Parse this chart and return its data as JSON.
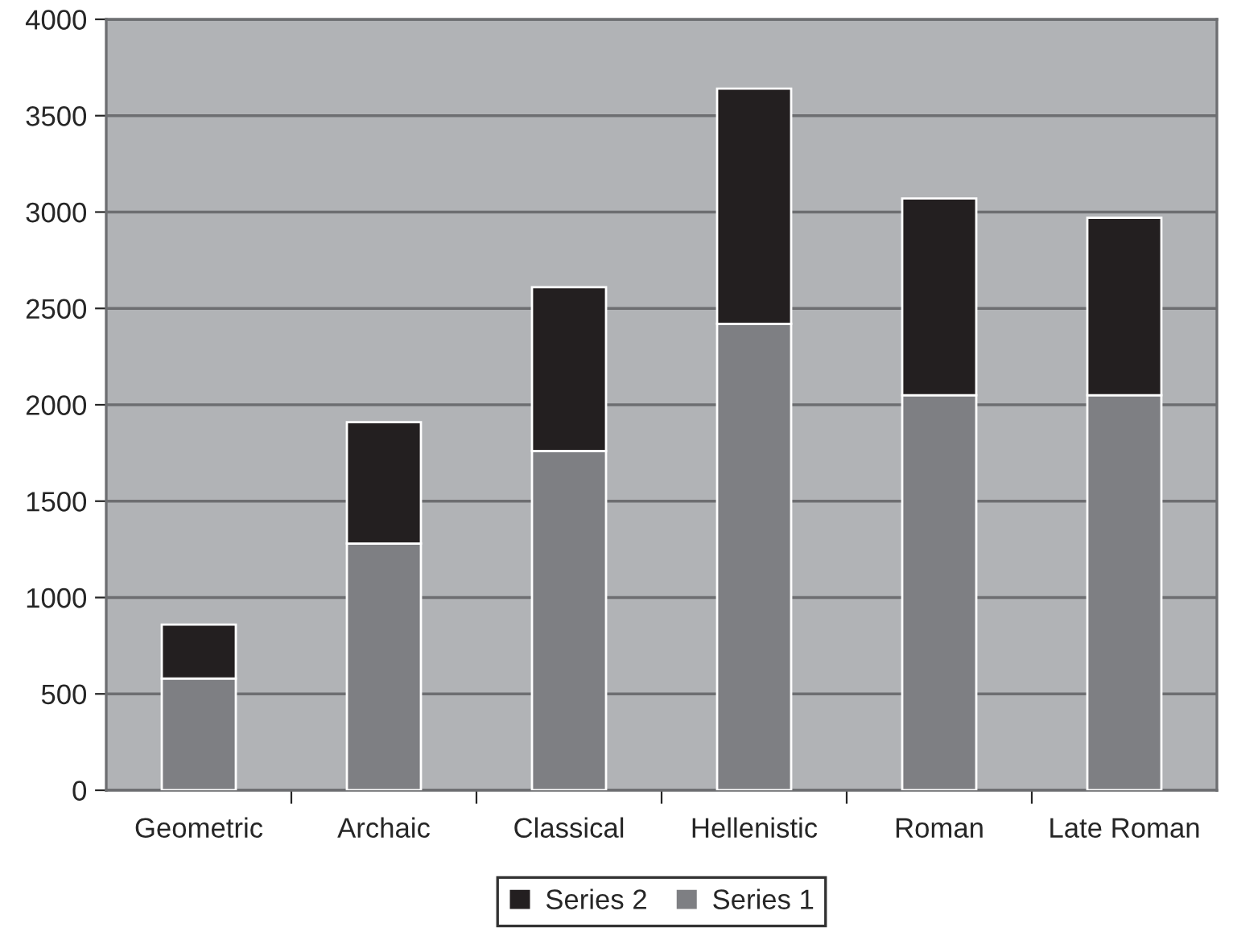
{
  "chart_data": {
    "type": "bar",
    "stacked": true,
    "categories": [
      "Geometric",
      "Archaic",
      "Classical",
      "Hellenistic",
      "Roman",
      "Late Roman"
    ],
    "series": [
      {
        "name": "Series 1",
        "color": "#7e7f83",
        "values": [
          580,
          1280,
          1760,
          2420,
          2050,
          2050
        ]
      },
      {
        "name": "Series 2",
        "color": "#231f20",
        "values": [
          280,
          630,
          850,
          1220,
          1020,
          920
        ]
      }
    ],
    "ylim": [
      0,
      4000
    ],
    "yticks": [
      0,
      500,
      1000,
      1500,
      2000,
      2500,
      3000,
      3500,
      4000
    ],
    "grid": "y",
    "legend": "bottom"
  }
}
